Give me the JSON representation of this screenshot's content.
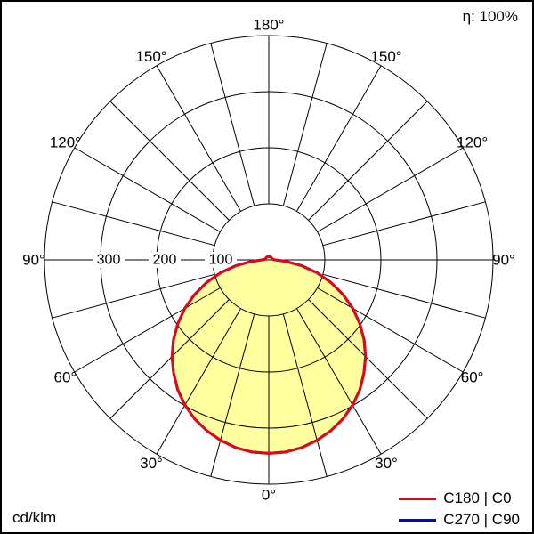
{
  "header": {
    "efficiency": "η: 100%"
  },
  "footer": {
    "unit": "cd/klm"
  },
  "legend": {
    "items": [
      {
        "label": "C180 | C0",
        "color": "#e30613"
      },
      {
        "label": "C270 | C90",
        "color": "#0008c8"
      }
    ]
  },
  "chart_data": {
    "type": "polar",
    "subtype": "luminous-intensity-distribution",
    "unit": "cd/klm",
    "efficiency_text": "η: 100%",
    "angle_zero_position": "bottom",
    "spoke_step_deg": 15,
    "ring_values": [
      100,
      200,
      300,
      400
    ],
    "radial_tick_labels": [
      "100",
      "200",
      "300"
    ],
    "angle_labels": [
      "0°",
      "30°",
      "60°",
      "90°",
      "120°",
      "150°",
      "180°"
    ],
    "grid_color": "#000000",
    "series": [
      {
        "name": "C270 | C90",
        "color": "#0008c8",
        "fill": "none",
        "points_deg_value": [
          [
            0,
            345
          ],
          [
            5,
            344
          ],
          [
            10,
            340
          ],
          [
            15,
            333
          ],
          [
            20,
            324
          ],
          [
            25,
            313
          ],
          [
            30,
            299
          ],
          [
            35,
            283
          ],
          [
            40,
            264
          ],
          [
            45,
            244
          ],
          [
            50,
            222
          ],
          [
            55,
            198
          ],
          [
            60,
            173
          ],
          [
            65,
            146
          ],
          [
            70,
            118
          ],
          [
            75,
            89
          ],
          [
            80,
            60
          ],
          [
            85,
            30
          ],
          [
            90,
            12
          ],
          [
            95,
            8
          ],
          [
            100,
            7
          ],
          [
            110,
            6
          ],
          [
            120,
            6
          ],
          [
            135,
            6
          ],
          [
            150,
            6
          ],
          [
            165,
            6
          ],
          [
            180,
            6
          ]
        ]
      },
      {
        "name": "C180 | C0",
        "color": "#e30613",
        "fill": "#ffffa0",
        "points_deg_value": [
          [
            0,
            345
          ],
          [
            5,
            344
          ],
          [
            10,
            340
          ],
          [
            15,
            333
          ],
          [
            20,
            324
          ],
          [
            25,
            313
          ],
          [
            30,
            299
          ],
          [
            35,
            283
          ],
          [
            40,
            264
          ],
          [
            45,
            244
          ],
          [
            50,
            222
          ],
          [
            55,
            198
          ],
          [
            60,
            173
          ],
          [
            65,
            146
          ],
          [
            70,
            118
          ],
          [
            75,
            89
          ],
          [
            80,
            60
          ],
          [
            85,
            30
          ],
          [
            90,
            12
          ],
          [
            95,
            8
          ],
          [
            100,
            7
          ],
          [
            110,
            6
          ],
          [
            120,
            6
          ],
          [
            135,
            6
          ],
          [
            150,
            6
          ],
          [
            165,
            6
          ],
          [
            180,
            6
          ]
        ]
      }
    ]
  }
}
